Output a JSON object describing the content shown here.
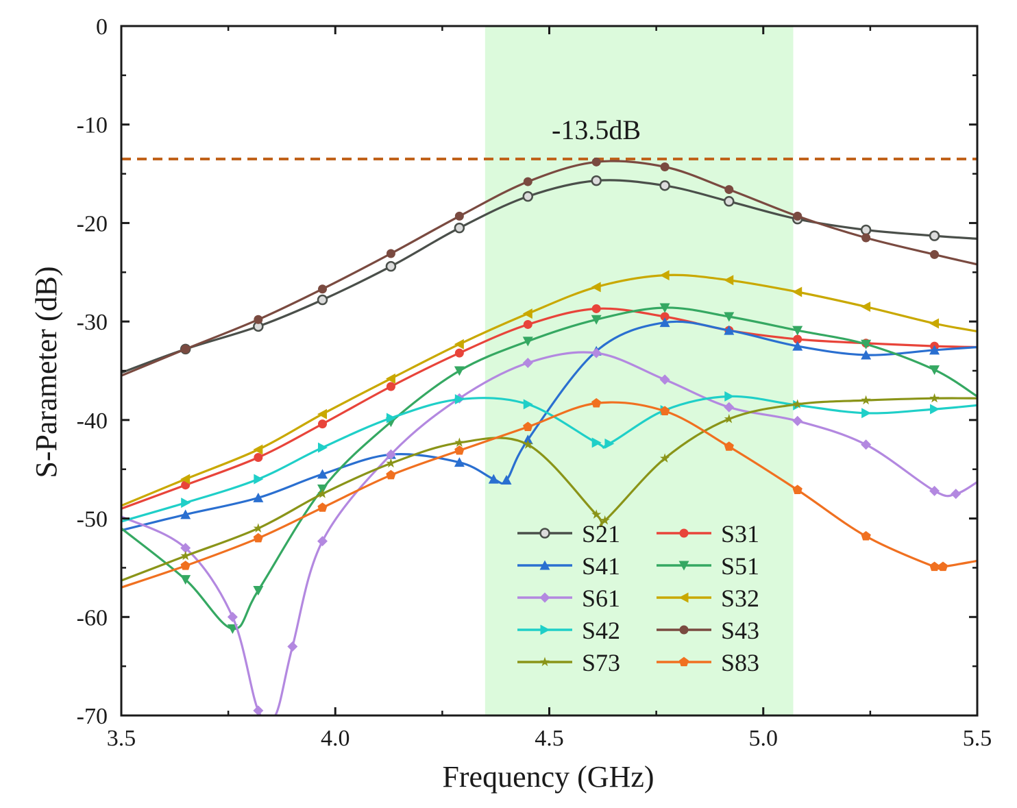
{
  "chart_data": {
    "type": "line",
    "xlabel": "Frequency (GHz)",
    "ylabel": "S-Parameter (dB)",
    "xlim": [
      3.5,
      5.5
    ],
    "ylim": [
      -70,
      0
    ],
    "xticks": [
      3.5,
      4.0,
      4.5,
      5.0,
      5.5
    ],
    "xtick_labels": [
      "3.5",
      "4.0",
      "4.5",
      "5.0",
      "5.5"
    ],
    "yticks": [
      0,
      -10,
      -20,
      -30,
      -40,
      -50,
      -60,
      -70
    ],
    "ytick_labels": [
      "0",
      "-10",
      "-20",
      "-30",
      "-40",
      "-50",
      "-60",
      "-70"
    ],
    "legend_position": "bottom-center",
    "shaded_band": {
      "x_start": 4.35,
      "x_end": 5.07,
      "color": "#dcfadc"
    },
    "reference_line": {
      "y": -13.5,
      "label": "-13.5dB",
      "color": "#c0621a",
      "style": "dashed"
    },
    "series": [
      {
        "name": "S21",
        "color": "#4a4f4a",
        "marker": "circle-open",
        "x": [
          3.5,
          3.65,
          3.82,
          3.97,
          4.13,
          4.29,
          4.45,
          4.61,
          4.77,
          4.92,
          5.08,
          5.24,
          5.4,
          5.5
        ],
        "y": [
          -35.2,
          -32.8,
          -30.5,
          -27.8,
          -24.4,
          -20.5,
          -17.3,
          -15.7,
          -16.2,
          -17.8,
          -19.6,
          -20.7,
          -21.3,
          -21.6
        ]
      },
      {
        "name": "S31",
        "color": "#e8443a",
        "marker": "circle",
        "x": [
          3.5,
          3.65,
          3.82,
          3.97,
          4.13,
          4.29,
          4.45,
          4.61,
          4.77,
          4.92,
          5.08,
          5.24,
          5.4,
          5.5
        ],
        "y": [
          -49.0,
          -46.6,
          -43.8,
          -40.4,
          -36.6,
          -33.2,
          -30.3,
          -28.7,
          -29.5,
          -30.9,
          -31.8,
          -32.2,
          -32.5,
          -32.6
        ]
      },
      {
        "name": "S41",
        "color": "#2a6fd0",
        "marker": "triangle-up",
        "x": [
          3.5,
          3.65,
          3.82,
          3.97,
          4.13,
          4.29,
          4.37,
          4.4,
          4.45,
          4.61,
          4.77,
          4.92,
          5.08,
          5.24,
          5.4,
          5.5
        ],
        "y": [
          -51.2,
          -49.6,
          -47.9,
          -45.5,
          -43.5,
          -44.3,
          -46.0,
          -46.1,
          -42.0,
          -33.0,
          -30.1,
          -30.9,
          -32.5,
          -33.4,
          -32.9,
          -32.6
        ]
      },
      {
        "name": "S51",
        "color": "#35a862",
        "marker": "triangle-down",
        "x": [
          3.5,
          3.65,
          3.76,
          3.82,
          3.97,
          4.13,
          4.29,
          4.45,
          4.61,
          4.77,
          4.92,
          5.08,
          5.24,
          5.4,
          5.5
        ],
        "y": [
          -51.0,
          -56.2,
          -61.2,
          -57.3,
          -47.0,
          -40.2,
          -35.0,
          -32.0,
          -29.8,
          -28.6,
          -29.5,
          -30.9,
          -32.3,
          -34.9,
          -37.6
        ]
      },
      {
        "name": "S61",
        "color": "#b388e0",
        "marker": "diamond",
        "x": [
          3.5,
          3.65,
          3.76,
          3.82,
          3.86,
          3.9,
          3.97,
          4.13,
          4.29,
          4.45,
          4.61,
          4.77,
          4.92,
          5.08,
          5.24,
          5.4,
          5.45,
          5.5
        ],
        "y": [
          -49.8,
          -53.0,
          -60.0,
          -69.5,
          -70,
          -63.0,
          -52.3,
          -43.5,
          -37.8,
          -34.2,
          -33.2,
          -35.9,
          -38.7,
          -40.1,
          -42.5,
          -47.2,
          -47.5,
          -46.3
        ]
      },
      {
        "name": "S32",
        "color": "#c9a800",
        "marker": "triangle-left",
        "x": [
          3.5,
          3.65,
          3.82,
          3.97,
          4.13,
          4.29,
          4.45,
          4.61,
          4.77,
          4.92,
          5.08,
          5.24,
          5.4,
          5.5
        ],
        "y": [
          -48.7,
          -46.0,
          -43.0,
          -39.4,
          -35.8,
          -32.3,
          -29.2,
          -26.5,
          -25.3,
          -25.8,
          -27.0,
          -28.5,
          -30.2,
          -31.0
        ]
      },
      {
        "name": "S42",
        "color": "#1fcfc8",
        "marker": "triangle-right",
        "x": [
          3.5,
          3.65,
          3.82,
          3.97,
          4.13,
          4.29,
          4.45,
          4.61,
          4.64,
          4.77,
          4.92,
          5.08,
          5.24,
          5.4,
          5.5
        ],
        "y": [
          -50.3,
          -48.4,
          -46.0,
          -42.8,
          -39.8,
          -37.9,
          -38.4,
          -42.3,
          -42.4,
          -39.0,
          -37.6,
          -38.5,
          -39.3,
          -38.9,
          -38.5
        ]
      },
      {
        "name": "S43",
        "color": "#7a4a40",
        "marker": "circle",
        "x": [
          3.5,
          3.65,
          3.82,
          3.97,
          4.13,
          4.29,
          4.45,
          4.61,
          4.77,
          4.92,
          5.08,
          5.24,
          5.4,
          5.5
        ],
        "y": [
          -35.5,
          -32.8,
          -29.8,
          -26.7,
          -23.1,
          -19.3,
          -15.8,
          -13.8,
          -14.3,
          -16.6,
          -19.3,
          -21.5,
          -23.2,
          -24.2
        ]
      },
      {
        "name": "S73",
        "color": "#8a9418",
        "marker": "star",
        "x": [
          3.5,
          3.65,
          3.82,
          3.97,
          4.13,
          4.29,
          4.45,
          4.61,
          4.63,
          4.77,
          4.92,
          5.08,
          5.24,
          5.4,
          5.5
        ],
        "y": [
          -56.3,
          -53.8,
          -51.0,
          -47.5,
          -44.4,
          -42.3,
          -42.5,
          -49.6,
          -50.2,
          -43.9,
          -39.9,
          -38.4,
          -38.0,
          -37.8,
          -37.8
        ]
      },
      {
        "name": "S83",
        "color": "#f07020",
        "marker": "pentagon",
        "x": [
          3.5,
          3.65,
          3.82,
          3.97,
          4.13,
          4.29,
          4.45,
          4.61,
          4.77,
          4.92,
          5.08,
          5.24,
          5.4,
          5.42,
          5.5
        ],
        "y": [
          -57.0,
          -54.8,
          -52.0,
          -48.9,
          -45.6,
          -43.1,
          -40.7,
          -38.3,
          -39.1,
          -42.7,
          -47.1,
          -51.8,
          -54.9,
          -54.9,
          -54.3
        ]
      }
    ]
  }
}
